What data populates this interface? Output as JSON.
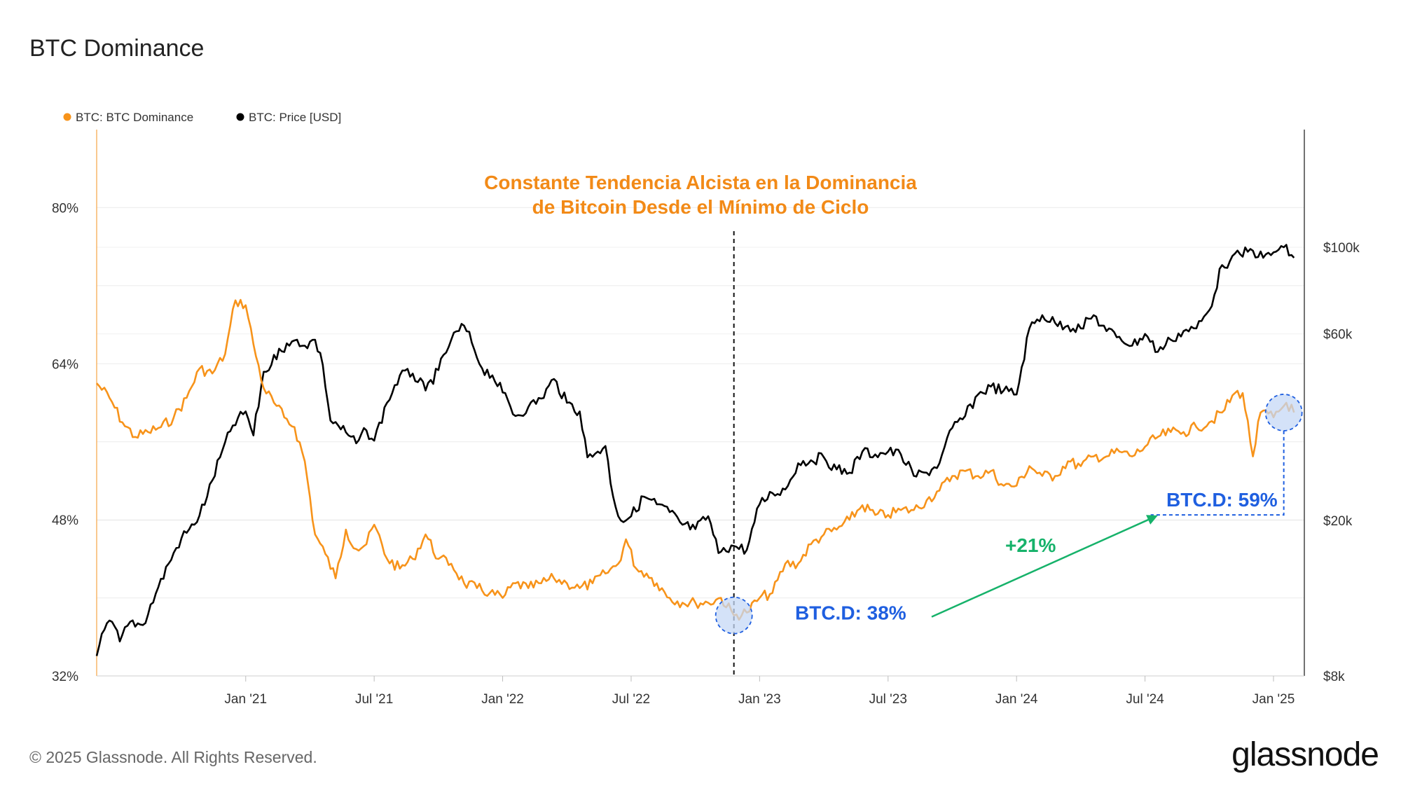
{
  "page": {
    "title": "BTC Dominance",
    "copyright": "© 2025 Glassnode. All Rights Reserved.",
    "logo": "glassnode"
  },
  "colors": {
    "dominance": "#f7931a",
    "price": "#000000",
    "headline": "#f28a17",
    "annotation_blue": "#1f5fe0",
    "annotation_green": "#16b26a",
    "circle_fill": "#c5d8f5",
    "grid": "#e8e8e8"
  },
  "chart_data": {
    "type": "line",
    "title": "Constante Tendencia Alcista en la Dominancia de Bitcoin Desde el Mínimo de Ciclo",
    "title_lines": [
      "Constante Tendencia Alcista en la Dominancia",
      "de Bitcoin Desde el Mínimo de Ciclo"
    ],
    "xlabel": "",
    "ylabel_left": "",
    "ylabel_right": "",
    "legend": [
      {
        "name": "BTC: BTC Dominance",
        "color": "#f7931a"
      },
      {
        "name": "BTC: Price [USD]",
        "color": "#000000"
      }
    ],
    "legend_position": "top-left",
    "x_range": [
      2020.42,
      2025.12
    ],
    "x_ticks": [
      {
        "label": "Jan '21",
        "x": 2021.0
      },
      {
        "label": "Jul '21",
        "x": 2021.5
      },
      {
        "label": "Jan '22",
        "x": 2022.0
      },
      {
        "label": "Jul '22",
        "x": 2022.5
      },
      {
        "label": "Jan '23",
        "x": 2023.0
      },
      {
        "label": "Jul '23",
        "x": 2023.5
      },
      {
        "label": "Jan '24",
        "x": 2024.0
      },
      {
        "label": "Jul '24",
        "x": 2024.5
      },
      {
        "label": "Jan '25",
        "x": 2025.0
      }
    ],
    "y_left": {
      "scale": "linear",
      "range": [
        32,
        88
      ],
      "ticks": [
        {
          "label": "32%",
          "v": 32
        },
        {
          "label": "48%",
          "v": 48
        },
        {
          "label": "64%",
          "v": 64
        },
        {
          "label": "80%",
          "v": 80
        }
      ]
    },
    "y_right": {
      "scale": "log",
      "range": [
        8000,
        200000
      ],
      "ticks": [
        {
          "label": "$8k",
          "v": 8000
        },
        {
          "label": "$20k",
          "v": 20000
        },
        {
          "label": "$60k",
          "v": 60000
        },
        {
          "label": "$100k",
          "v": 100000
        }
      ]
    },
    "series": [
      {
        "name": "BTC: BTC Dominance",
        "axis": "left",
        "unit": "%",
        "x": [
          2020.42,
          2020.47,
          2020.52,
          2020.57,
          2020.62,
          2020.67,
          2020.72,
          2020.77,
          2020.82,
          2020.87,
          2020.92,
          2020.96,
          2021.0,
          2021.03,
          2021.07,
          2021.11,
          2021.15,
          2021.19,
          2021.23,
          2021.27,
          2021.31,
          2021.35,
          2021.39,
          2021.43,
          2021.47,
          2021.5,
          2021.55,
          2021.6,
          2021.65,
          2021.7,
          2021.75,
          2021.8,
          2021.85,
          2021.9,
          2021.95,
          2022.0,
          2022.05,
          2022.1,
          2022.15,
          2022.2,
          2022.25,
          2022.3,
          2022.35,
          2022.4,
          2022.45,
          2022.48,
          2022.52,
          2022.56,
          2022.6,
          2022.65,
          2022.7,
          2022.75,
          2022.8,
          2022.85,
          2022.9,
          2022.95,
          2023.0,
          2023.05,
          2023.1,
          2023.15,
          2023.2,
          2023.25,
          2023.3,
          2023.35,
          2023.4,
          2023.45,
          2023.5,
          2023.55,
          2023.6,
          2023.65,
          2023.7,
          2023.75,
          2023.8,
          2023.85,
          2023.9,
          2023.95,
          2024.0,
          2024.05,
          2024.1,
          2024.15,
          2024.2,
          2024.25,
          2024.3,
          2024.35,
          2024.4,
          2024.45,
          2024.5,
          2024.55,
          2024.6,
          2024.65,
          2024.7,
          2024.75,
          2024.8,
          2024.85,
          2024.88,
          2024.92,
          2024.95,
          2025.0,
          2025.05,
          2025.08
        ],
        "values": [
          62,
          60.5,
          58,
          56.5,
          57,
          57.5,
          58.5,
          60.5,
          63.5,
          63,
          65,
          70.5,
          70,
          66,
          61.5,
          60,
          58.5,
          57.5,
          54,
          46.5,
          44.5,
          42,
          47,
          45,
          45.5,
          47.5,
          44,
          43,
          44,
          46.5,
          44,
          43.5,
          41.5,
          41,
          40.5,
          40,
          41.5,
          41,
          41.5,
          42,
          41.5,
          41,
          41.5,
          42.5,
          43.5,
          46,
          43,
          42.5,
          41.5,
          40,
          39.5,
          39.5,
          39.5,
          40,
          38.2,
          38.5,
          40,
          40.5,
          43.5,
          43.5,
          45.5,
          46.5,
          47,
          48,
          49.5,
          48.5,
          48.5,
          49,
          49,
          50,
          51,
          52.5,
          53,
          52.5,
          53,
          51.5,
          51.5,
          53.5,
          52.5,
          52.5,
          54,
          53.5,
          54.5,
          54.5,
          55,
          54.5,
          55.5,
          56.5,
          57,
          57,
          57.5,
          58,
          59,
          61,
          61,
          54.5,
          59,
          58.5,
          60,
          59
        ]
      },
      {
        "name": "BTC: Price [USD]",
        "axis": "right",
        "unit": "USD",
        "x": [
          2020.42,
          2020.45,
          2020.48,
          2020.51,
          2020.55,
          2020.6,
          2020.65,
          2020.7,
          2020.75,
          2020.8,
          2020.85,
          2020.9,
          2020.95,
          2021.0,
          2021.03,
          2021.07,
          2021.1,
          2021.13,
          2021.17,
          2021.2,
          2021.23,
          2021.27,
          2021.3,
          2021.33,
          2021.36,
          2021.4,
          2021.43,
          2021.47,
          2021.5,
          2021.55,
          2021.6,
          2021.65,
          2021.7,
          2021.75,
          2021.8,
          2021.85,
          2021.88,
          2021.92,
          2021.96,
          2022.0,
          2022.05,
          2022.1,
          2022.15,
          2022.2,
          2022.25,
          2022.3,
          2022.33,
          2022.37,
          2022.4,
          2022.43,
          2022.46,
          2022.5,
          2022.55,
          2022.6,
          2022.65,
          2022.7,
          2022.75,
          2022.8,
          2022.84,
          2022.86,
          2022.9,
          2022.95,
          2023.0,
          2023.05,
          2023.1,
          2023.15,
          2023.2,
          2023.25,
          2023.3,
          2023.35,
          2023.4,
          2023.45,
          2023.5,
          2023.55,
          2023.6,
          2023.65,
          2023.7,
          2023.75,
          2023.8,
          2023.85,
          2023.9,
          2023.95,
          2024.0,
          2024.05,
          2024.1,
          2024.15,
          2024.2,
          2024.25,
          2024.3,
          2024.35,
          2024.4,
          2024.45,
          2024.5,
          2024.55,
          2024.6,
          2024.65,
          2024.7,
          2024.75,
          2024.8,
          2024.83,
          2024.87,
          2024.92,
          2024.96,
          2025.0,
          2025.04,
          2025.08
        ],
        "values": [
          9000,
          10500,
          11000,
          9800,
          11000,
          10800,
          13000,
          15500,
          18000,
          19500,
          23000,
          29000,
          35000,
          38000,
          33000,
          48000,
          50000,
          55000,
          56000,
          58000,
          56000,
          58000,
          50000,
          36000,
          35000,
          33000,
          31500,
          34000,
          32000,
          40000,
          47000,
          47500,
          43000,
          48500,
          58000,
          63000,
          57000,
          49000,
          47000,
          42500,
          37000,
          39000,
          41000,
          46000,
          40000,
          38000,
          29000,
          30000,
          31000,
          23000,
          20000,
          20500,
          23000,
          22000,
          21000,
          19500,
          19000,
          20500,
          16500,
          17000,
          17200,
          16800,
          22000,
          23500,
          24000,
          28000,
          28500,
          29000,
          27000,
          26500,
          30000,
          29500,
          30000,
          29500,
          26000,
          26500,
          28000,
          34500,
          37000,
          42000,
          44000,
          43000,
          42000,
          62000,
          67000,
          64000,
          63000,
          62000,
          67000,
          61000,
          59000,
          56000,
          60000,
          54000,
          58000,
          61000,
          62000,
          69000,
          90000,
          92000,
          96000,
          98000,
          94000,
          97000,
          100000,
          94000
        ]
      }
    ],
    "annotations": {
      "cycle_low_label": "BTC.D: 38%",
      "cycle_low_x": 2022.9,
      "cycle_low_value": 38.2,
      "current_label": "BTC.D: 59%",
      "current_x": 2025.04,
      "current_value": 59,
      "current_level_value": 48.5,
      "change_label": "+21%",
      "vline_x": 2022.9
    }
  }
}
